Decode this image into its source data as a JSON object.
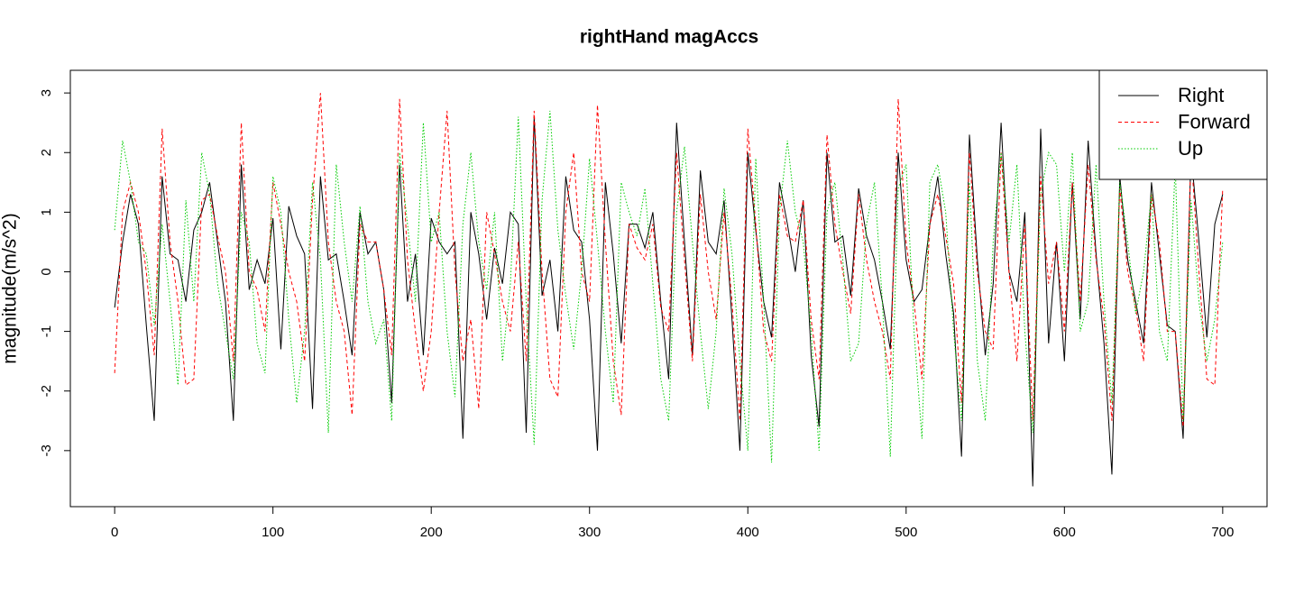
{
  "chart_data": {
    "type": "line",
    "title": "rightHand magAccs",
    "y_label": "magnitude(m/s^2)",
    "xlim": [
      -28,
      728
    ],
    "ylim": [
      -3.94,
      3.38
    ],
    "xticks": [
      0,
      100,
      200,
      300,
      400,
      500,
      600,
      700
    ],
    "yticks": [
      -3,
      -2,
      -1,
      0,
      1,
      2,
      3
    ],
    "legend_position": "topright",
    "x": [
      0,
      5,
      10,
      15,
      20,
      25,
      30,
      35,
      40,
      45,
      50,
      55,
      60,
      65,
      70,
      75,
      80,
      85,
      90,
      95,
      100,
      105,
      110,
      115,
      120,
      125,
      130,
      135,
      140,
      145,
      150,
      155,
      160,
      165,
      170,
      175,
      180,
      185,
      190,
      195,
      200,
      205,
      210,
      215,
      220,
      225,
      230,
      235,
      240,
      245,
      250,
      255,
      260,
      265,
      270,
      275,
      280,
      285,
      290,
      295,
      300,
      305,
      310,
      315,
      320,
      325,
      330,
      335,
      340,
      345,
      350,
      355,
      360,
      365,
      370,
      375,
      380,
      385,
      390,
      395,
      400,
      405,
      410,
      415,
      420,
      425,
      430,
      435,
      440,
      445,
      450,
      455,
      460,
      465,
      470,
      475,
      480,
      485,
      490,
      495,
      500,
      505,
      510,
      515,
      520,
      525,
      530,
      535,
      540,
      545,
      550,
      555,
      560,
      565,
      570,
      575,
      580,
      585,
      590,
      595,
      600,
      605,
      610,
      615,
      620,
      625,
      630,
      635,
      640,
      645,
      650,
      655,
      660,
      665,
      670,
      675,
      680,
      685,
      690,
      695,
      700
    ],
    "series": [
      {
        "name": "Right",
        "color": "#000000",
        "linestyle": "solid",
        "values": [
          -0.6,
          0.5,
          1.3,
          0.8,
          -0.9,
          -2.5,
          1.6,
          0.3,
          0.2,
          -0.5,
          0.7,
          1.0,
          1.5,
          0.5,
          -0.5,
          -2.5,
          1.8,
          -0.3,
          0.2,
          -0.2,
          0.9,
          -1.3,
          1.1,
          0.6,
          0.3,
          -2.3,
          1.6,
          0.2,
          0.3,
          -0.5,
          -1.4,
          1.0,
          0.3,
          0.5,
          -0.3,
          -2.2,
          1.8,
          -0.5,
          0.3,
          -1.4,
          0.9,
          0.5,
          0.3,
          0.5,
          -2.8,
          1.0,
          0.3,
          -0.8,
          0.4,
          -0.2,
          1.0,
          0.8,
          -2.7,
          2.6,
          -0.4,
          0.2,
          -1.0,
          1.6,
          0.7,
          0.5,
          -0.8,
          -3.0,
          1.5,
          0.3,
          -1.2,
          0.8,
          0.8,
          0.4,
          1.0,
          -0.5,
          -1.8,
          2.5,
          0.5,
          -1.4,
          1.7,
          0.5,
          0.3,
          1.2,
          -0.8,
          -3.0,
          2.0,
          0.7,
          -0.5,
          -1.1,
          1.5,
          0.8,
          0.0,
          1.2,
          -1.4,
          -2.6,
          2.0,
          0.5,
          0.6,
          -0.4,
          1.4,
          0.6,
          0.2,
          -0.5,
          -1.3,
          2.0,
          0.2,
          -0.5,
          -0.3,
          0.8,
          1.6,
          0.3,
          -0.7,
          -3.1,
          2.3,
          0.2,
          -1.4,
          -0.2,
          2.5,
          0.0,
          -0.5,
          1.0,
          -3.6,
          2.4,
          -1.2,
          0.5,
          -1.5,
          1.5,
          -0.8,
          2.2,
          0.3,
          -1.2,
          -3.4,
          1.6,
          0.2,
          -0.5,
          -1.2,
          1.5,
          0.3,
          -0.9,
          -1.0,
          -2.8,
          2.0,
          0.5,
          -1.1,
          0.8,
          1.3
        ]
      },
      {
        "name": "Forward",
        "color": "#ff0000",
        "linestyle": "dashed",
        "values": [
          -1.7,
          1.0,
          1.5,
          1.0,
          0.0,
          -1.4,
          2.4,
          0.5,
          -0.5,
          -1.9,
          -1.8,
          1.2,
          1.3,
          0.6,
          0.0,
          -1.5,
          2.5,
          0.0,
          -0.3,
          -1.0,
          1.5,
          0.8,
          0.0,
          -0.5,
          -1.5,
          1.2,
          3.0,
          0.5,
          -0.5,
          -1.0,
          -2.4,
          0.8,
          0.5,
          0.5,
          -0.3,
          -1.4,
          2.9,
          0.2,
          -1.0,
          -2.0,
          -1.0,
          1.0,
          2.7,
          0.0,
          -1.5,
          -0.8,
          -2.3,
          1.0,
          0.3,
          -0.5,
          -1.0,
          0.5,
          -1.5,
          2.7,
          0.0,
          -1.8,
          -2.1,
          1.0,
          2.0,
          0.0,
          -0.5,
          2.8,
          0.5,
          -1.5,
          -2.4,
          0.8,
          0.4,
          0.2,
          0.8,
          -0.6,
          -1.0,
          2.0,
          0.2,
          -1.5,
          1.3,
          0.0,
          -0.8,
          1.0,
          -0.5,
          -2.5,
          2.4,
          0.8,
          -1.0,
          -1.5,
          1.3,
          0.6,
          0.5,
          1.2,
          -0.8,
          -1.8,
          2.3,
          0.8,
          0.0,
          -0.7,
          1.3,
          0.2,
          -0.5,
          -1.0,
          -1.8,
          2.9,
          0.5,
          -0.5,
          -1.8,
          0.8,
          1.3,
          0.6,
          -0.2,
          -2.2,
          2.0,
          0.0,
          -1.0,
          -1.3,
          2.0,
          0.0,
          -1.5,
          0.8,
          -2.5,
          1.6,
          -0.2,
          0.5,
          -1.0,
          1.5,
          -0.5,
          1.8,
          0.2,
          -0.8,
          -2.5,
          1.4,
          0.0,
          -0.6,
          -1.5,
          1.3,
          0.5,
          -1.0,
          -1.0,
          -2.6,
          2.0,
          0.0,
          -1.8,
          -1.9,
          1.4
        ]
      },
      {
        "name": "Up",
        "color": "#00cd00",
        "linestyle": "dotted",
        "values": [
          0.7,
          2.2,
          1.5,
          0.5,
          0.3,
          -0.9,
          0.8,
          -0.5,
          -1.9,
          1.2,
          -0.5,
          2.0,
          1.3,
          -0.2,
          -1.0,
          -1.8,
          1.0,
          0.5,
          -1.2,
          -1.7,
          1.6,
          1.0,
          -0.8,
          -2.2,
          -1.0,
          1.5,
          0.2,
          -2.7,
          1.8,
          0.5,
          -0.5,
          1.1,
          -0.5,
          -1.2,
          -0.8,
          -2.5,
          2.0,
          0.8,
          -0.5,
          2.5,
          0.5,
          1.0,
          -1.0,
          -2.1,
          0.8,
          2.0,
          0.5,
          -0.3,
          1.0,
          -1.5,
          -0.2,
          2.6,
          -0.5,
          -2.9,
          1.2,
          2.7,
          0.7,
          -0.4,
          -1.3,
          0.0,
          1.9,
          0.5,
          -1.0,
          -2.2,
          1.5,
          1.0,
          0.6,
          1.4,
          -0.2,
          -1.8,
          -2.5,
          1.0,
          2.1,
          0.5,
          -1.0,
          -2.3,
          -1.0,
          1.4,
          0.3,
          -1.5,
          -3.0,
          1.9,
          -0.5,
          -3.2,
          1.0,
          2.2,
          1.0,
          0.5,
          -1.0,
          -3.0,
          1.0,
          1.5,
          0.2,
          -1.5,
          -1.2,
          0.8,
          1.5,
          -0.5,
          -3.1,
          1.4,
          1.8,
          -1.0,
          -2.8,
          1.5,
          1.8,
          1.0,
          -1.0,
          -2.5,
          1.5,
          -1.5,
          -2.5,
          0.5,
          2.0,
          0.5,
          1.8,
          -1.0,
          -2.7,
          1.3,
          2.0,
          1.8,
          0.0,
          2.0,
          -1.0,
          -0.5,
          1.8,
          -0.5,
          -2.2,
          1.5,
          0.5,
          -0.7,
          0.0,
          1.3,
          -1.0,
          -1.5,
          1.8,
          -2.5,
          1.2,
          -0.5,
          -1.5,
          -0.8,
          0.5
        ]
      }
    ]
  }
}
